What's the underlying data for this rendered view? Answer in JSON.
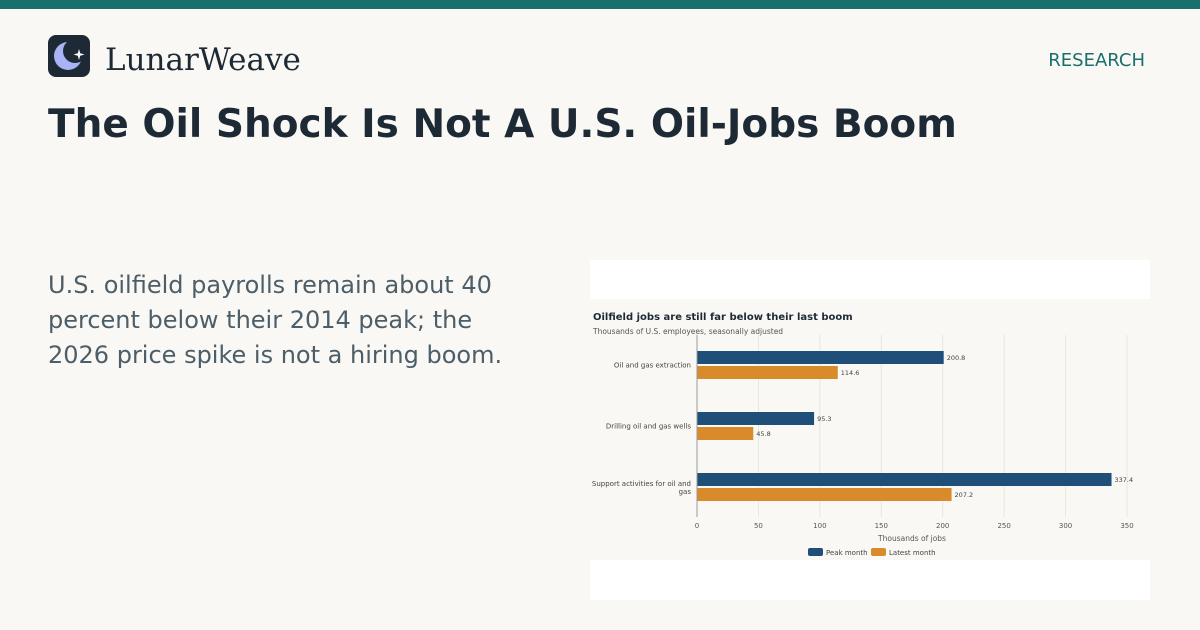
{
  "brand": {
    "name": "LunarWeave",
    "logo_icon": "crescent-moon-star-icon"
  },
  "section_label": "RESEARCH",
  "headline": "The Oil Shock Is Not A U.S. Oil-Jobs Boom",
  "deck": "U.S. oilfield payrolls remain about 40 percent below their 2014 peak; the 2026 price spike is not a hiring boom.",
  "colors": {
    "accent": "#1a6e6e",
    "peak": "#1f4e79",
    "latest": "#d98b2b"
  },
  "chart_data": {
    "type": "bar",
    "orientation": "horizontal",
    "title": "Oilfield jobs are still far below their last boom",
    "subtitle": "Thousands of U.S. employees, seasonally adjusted",
    "xlabel": "Thousands of jobs",
    "ylabel": "",
    "xlim": [
      0,
      350
    ],
    "ticks": [
      0,
      50,
      100,
      150,
      200,
      250,
      300,
      350
    ],
    "grid": true,
    "legend": "bottom",
    "categories": [
      "Oil and gas extraction",
      "Drilling oil and gas wells",
      "Support activities for oil and gas"
    ],
    "series": [
      {
        "name": "Peak month",
        "values": [
          200.8,
          95.3,
          337.4
        ]
      },
      {
        "name": "Latest month",
        "values": [
          114.6,
          45.8,
          207.2
        ]
      }
    ]
  }
}
